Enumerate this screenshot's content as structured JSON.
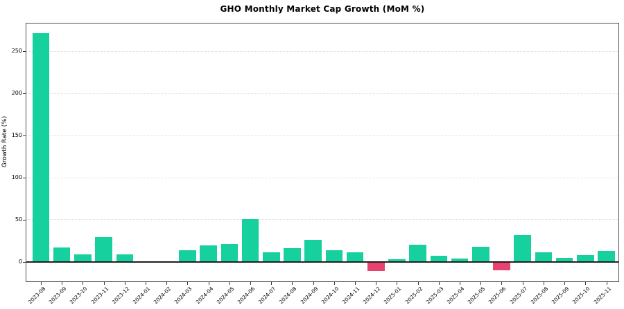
{
  "chart_data": {
    "type": "bar",
    "title": "GHO Monthly Market Cap Growth (MoM %)",
    "xlabel": "",
    "ylabel": "Growth Rate (%)",
    "categories": [
      "2023-08",
      "2023-09",
      "2023-10",
      "2023-11",
      "2023-12",
      "2024-01",
      "2024-02",
      "2024-03",
      "2024-04",
      "2024-05",
      "2024-06",
      "2024-07",
      "2024-08",
      "2024-09",
      "2024-10",
      "2024-11",
      "2024-12",
      "2025-01",
      "2025-02",
      "2025-03",
      "2025-04",
      "2025-05",
      "2025-06",
      "2025-07",
      "2025-08",
      "2025-09",
      "2025-10",
      "2025-11"
    ],
    "values": [
      272,
      17,
      8.5,
      29,
      8.5,
      0,
      0,
      13.5,
      19.5,
      21,
      51,
      11,
      16,
      26,
      13.5,
      11,
      -11,
      3.5,
      20.5,
      7,
      4,
      17.5,
      -10,
      31.5,
      11.5,
      5,
      8,
      13
    ],
    "yticks": [
      0,
      50,
      100,
      150,
      200,
      250
    ],
    "ylim": [
      -24,
      284
    ],
    "grid": "horizontal-dotted",
    "legend_position": "none",
    "colors": {
      "positive": "#16d09e",
      "negative": "#e8436e",
      "grid": "#dcdcdc",
      "zero_line": "#1f1f1f",
      "spine": "#4d4d4d",
      "text": "#000000",
      "background": "#ffffff"
    }
  }
}
